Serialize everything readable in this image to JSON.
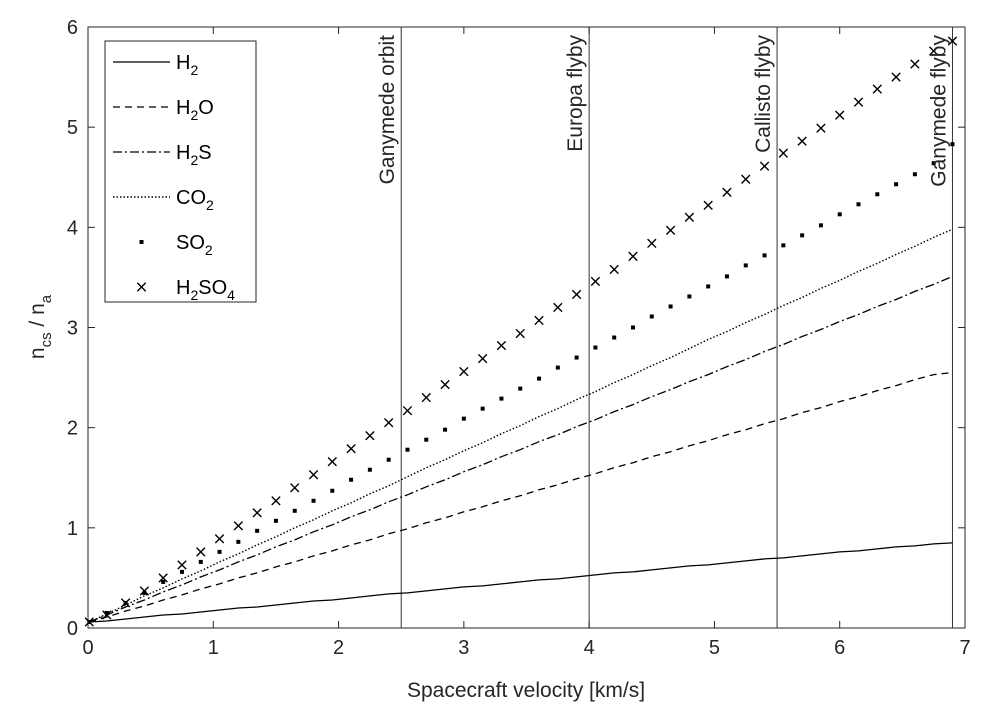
{
  "chart_data": {
    "type": "line",
    "xlabel": "Spacecraft velocity [km/s]",
    "ylabel": "n_cs / n_a",
    "xlim": [
      0,
      7
    ],
    "ylim": [
      0,
      6
    ],
    "xticks": [
      "0",
      "1",
      "2",
      "3",
      "4",
      "5",
      "6",
      "7"
    ],
    "yticks": [
      "0",
      "1",
      "2",
      "3",
      "4",
      "5",
      "6"
    ],
    "grid": false,
    "legend": "top-left",
    "x": [
      0.01,
      0.15,
      0.3,
      0.45,
      0.6,
      0.75,
      0.9,
      1.05,
      1.2,
      1.35,
      1.5,
      1.65,
      1.8,
      1.95,
      2.1,
      2.25,
      2.4,
      2.55,
      2.7,
      2.85,
      3.0,
      3.15,
      3.3,
      3.45,
      3.6,
      3.75,
      3.9,
      4.05,
      4.2,
      4.35,
      4.5,
      4.65,
      4.8,
      4.95,
      5.1,
      5.25,
      5.4,
      5.55,
      5.7,
      5.85,
      6.0,
      6.15,
      6.3,
      6.45,
      6.6,
      6.75,
      6.9
    ],
    "series": [
      {
        "name": "H2",
        "style": "solid",
        "values": [
          0.06,
          0.07,
          0.09,
          0.11,
          0.13,
          0.14,
          0.16,
          0.18,
          0.2,
          0.21,
          0.23,
          0.25,
          0.27,
          0.28,
          0.3,
          0.32,
          0.34,
          0.35,
          0.37,
          0.39,
          0.41,
          0.42,
          0.44,
          0.46,
          0.48,
          0.49,
          0.51,
          0.53,
          0.55,
          0.56,
          0.58,
          0.6,
          0.62,
          0.63,
          0.65,
          0.67,
          0.69,
          0.7,
          0.72,
          0.74,
          0.76,
          0.77,
          0.79,
          0.81,
          0.82,
          0.84,
          0.85
        ]
      },
      {
        "name": "H2O",
        "style": "dashed",
        "values": [
          0.06,
          0.11,
          0.17,
          0.22,
          0.28,
          0.33,
          0.39,
          0.44,
          0.5,
          0.55,
          0.61,
          0.66,
          0.72,
          0.77,
          0.83,
          0.88,
          0.94,
          0.99,
          1.05,
          1.1,
          1.16,
          1.21,
          1.27,
          1.32,
          1.38,
          1.43,
          1.49,
          1.54,
          1.6,
          1.65,
          1.71,
          1.76,
          1.82,
          1.87,
          1.93,
          1.98,
          2.04,
          2.09,
          2.15,
          2.2,
          2.26,
          2.31,
          2.37,
          2.42,
          2.48,
          2.53,
          2.55
        ]
      },
      {
        "name": "H2S",
        "style": "dashdot",
        "values": [
          0.06,
          0.13,
          0.21,
          0.28,
          0.36,
          0.43,
          0.51,
          0.58,
          0.66,
          0.73,
          0.81,
          0.88,
          0.96,
          1.03,
          1.11,
          1.18,
          1.26,
          1.33,
          1.41,
          1.48,
          1.56,
          1.63,
          1.71,
          1.78,
          1.86,
          1.93,
          2.01,
          2.08,
          2.16,
          2.23,
          2.31,
          2.38,
          2.46,
          2.53,
          2.61,
          2.68,
          2.76,
          2.83,
          2.91,
          2.98,
          3.06,
          3.13,
          3.21,
          3.28,
          3.36,
          3.43,
          3.51
        ]
      },
      {
        "name": "CO2",
        "style": "dotted",
        "values": [
          0.06,
          0.14,
          0.23,
          0.32,
          0.4,
          0.49,
          0.57,
          0.66,
          0.74,
          0.83,
          0.91,
          1.0,
          1.08,
          1.17,
          1.25,
          1.34,
          1.42,
          1.51,
          1.6,
          1.68,
          1.77,
          1.85,
          1.94,
          2.02,
          2.11,
          2.19,
          2.28,
          2.36,
          2.45,
          2.53,
          2.62,
          2.7,
          2.79,
          2.88,
          2.96,
          3.05,
          3.13,
          3.22,
          3.3,
          3.39,
          3.47,
          3.56,
          3.64,
          3.73,
          3.81,
          3.9,
          3.98
        ]
      },
      {
        "name": "SO2",
        "style": "square-markers",
        "values": [
          0.06,
          0.15,
          0.25,
          0.35,
          0.46,
          0.56,
          0.66,
          0.76,
          0.86,
          0.97,
          1.07,
          1.17,
          1.27,
          1.37,
          1.48,
          1.58,
          1.68,
          1.78,
          1.88,
          1.98,
          2.09,
          2.19,
          2.29,
          2.39,
          2.49,
          2.6,
          2.7,
          2.8,
          2.9,
          3.0,
          3.11,
          3.21,
          3.31,
          3.41,
          3.51,
          3.62,
          3.72,
          3.82,
          3.92,
          4.02,
          4.13,
          4.23,
          4.33,
          4.43,
          4.53,
          4.64,
          4.83
        ]
      },
      {
        "name": "H2SO4",
        "style": "x-markers",
        "values": [
          0.06,
          0.13,
          0.25,
          0.37,
          0.5,
          0.63,
          0.76,
          0.89,
          1.02,
          1.15,
          1.27,
          1.4,
          1.53,
          1.66,
          1.79,
          1.92,
          2.05,
          2.17,
          2.3,
          2.43,
          2.56,
          2.69,
          2.82,
          2.94,
          3.07,
          3.2,
          3.33,
          3.46,
          3.58,
          3.71,
          3.84,
          3.97,
          4.1,
          4.22,
          4.35,
          4.48,
          4.61,
          4.74,
          4.86,
          4.99,
          5.12,
          5.25,
          5.38,
          5.5,
          5.63,
          5.76,
          5.86
        ]
      }
    ],
    "annotations": [
      {
        "x": 2.5,
        "label": "Ganymede orbit"
      },
      {
        "x": 4.0,
        "label": "Europa flyby"
      },
      {
        "x": 5.5,
        "label": "Callisto flyby"
      },
      {
        "x": 6.9,
        "label": "Ganymede flyby"
      }
    ],
    "legend_entries": [
      {
        "base": "H",
        "sub": "2",
        "rest": "",
        "sub2": ""
      },
      {
        "base": "H",
        "sub": "2",
        "rest": "O",
        "sub2": ""
      },
      {
        "base": "H",
        "sub": "2",
        "rest": "S",
        "sub2": ""
      },
      {
        "base": "CO",
        "sub": "2",
        "rest": "",
        "sub2": ""
      },
      {
        "base": "SO",
        "sub": "2",
        "rest": "",
        "sub2": ""
      },
      {
        "base": "H",
        "sub": "2",
        "rest": "SO",
        "sub2": "4"
      }
    ],
    "ylabel_parts": {
      "n1": "n",
      "s1": "cs",
      "sep": " / ",
      "n2": "n",
      "s2": "a"
    }
  }
}
